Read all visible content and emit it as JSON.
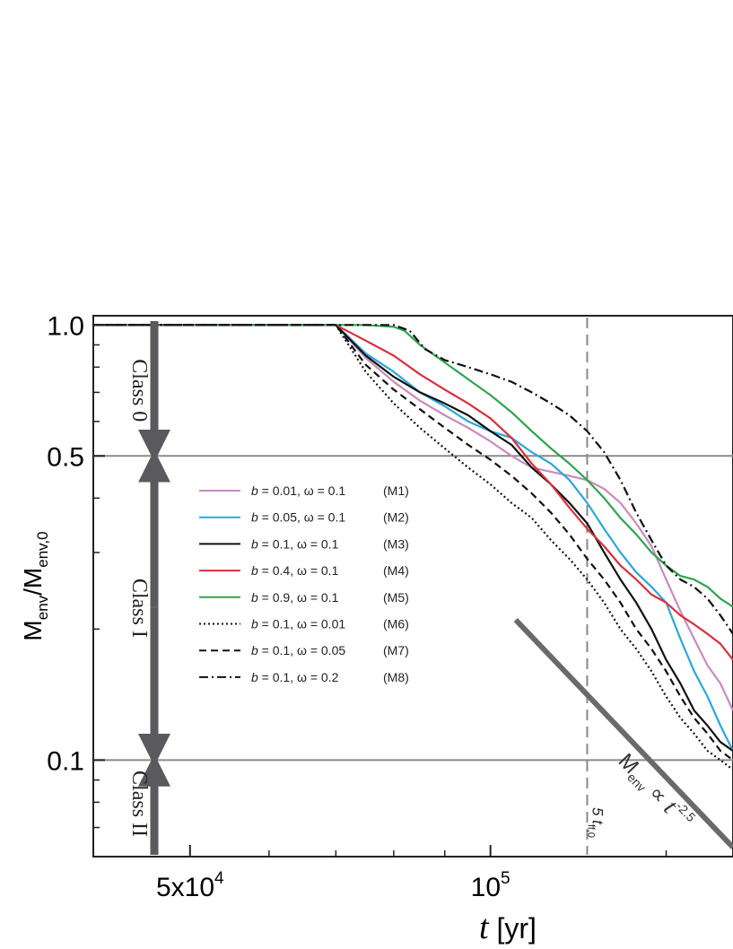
{
  "chart_data": {
    "type": "line",
    "x_scale": "log",
    "y_scale": "log",
    "xlim": [
      40000,
      175000
    ],
    "ylim": [
      0.06,
      1.05
    ],
    "x_ticks": [
      {
        "value": 50000,
        "label": "5x10",
        "exp": "4"
      },
      {
        "value": 100000,
        "label": "10",
        "exp": "5"
      }
    ],
    "y_ticks": [
      {
        "value": 1.0,
        "label": "1.0"
      },
      {
        "value": 0.5,
        "label": "0.5"
      },
      {
        "value": 0.1,
        "label": "0.1"
      }
    ],
    "xlabel": {
      "var": "t",
      "unit": " [yr]"
    },
    "ylabel": {
      "main": "M",
      "sub1": "env",
      "mid": "/M",
      "sub2": "env,0"
    },
    "hlines": [
      0.5,
      0.1
    ],
    "vline": {
      "x": 125000,
      "label": "5 t",
      "sub": "ff,0"
    },
    "classes": [
      {
        "label": "Class 0",
        "y_top": 1.0,
        "y_bottom": 0.5
      },
      {
        "label": "Class I",
        "y_top": 0.5,
        "y_bottom": 0.1
      },
      {
        "label": "Class II",
        "y_top": 0.1,
        "y_bottom": 0.063
      }
    ],
    "power_law": {
      "x": [
        106000,
        175000
      ],
      "y": [
        0.21,
        0.063
      ],
      "label": {
        "main": "M",
        "sub": "env",
        "rel": " ∝ ",
        "var": "t",
        "exp": "-2.5"
      }
    },
    "series": [
      {
        "name": "b = 0.01, ω = 0.1 (M1)",
        "b": "0.01",
        "w": "0.1",
        "tag": "(M1)",
        "color": "#c98bbf",
        "dash": "",
        "x": [
          40000,
          70000,
          75000,
          80000,
          85000,
          90000,
          95000,
          100000,
          105000,
          110000,
          115000,
          120000,
          125000,
          130000,
          135000,
          140000,
          145000,
          150000,
          155000,
          160000,
          165000,
          170000,
          175000
        ],
        "y": [
          1.0,
          1.0,
          0.84,
          0.74,
          0.67,
          0.62,
          0.58,
          0.54,
          0.5,
          0.47,
          0.46,
          0.45,
          0.44,
          0.42,
          0.39,
          0.35,
          0.31,
          0.26,
          0.22,
          0.19,
          0.165,
          0.15,
          0.13
        ]
      },
      {
        "name": "b = 0.05, ω = 0.1 (M2)",
        "b": "0.05",
        "w": "0.1",
        "tag": "(M2)",
        "color": "#2aa7dd",
        "dash": "",
        "x": [
          40000,
          70000,
          75000,
          80000,
          85000,
          90000,
          95000,
          100000,
          105000,
          110000,
          115000,
          120000,
          125000,
          130000,
          135000,
          140000,
          145000,
          150000,
          155000,
          160000,
          165000,
          170000,
          175000
        ],
        "y": [
          1.0,
          1.0,
          0.86,
          0.78,
          0.7,
          0.65,
          0.6,
          0.57,
          0.55,
          0.51,
          0.48,
          0.44,
          0.39,
          0.34,
          0.3,
          0.27,
          0.25,
          0.23,
          0.19,
          0.16,
          0.14,
          0.12,
          0.105
        ]
      },
      {
        "name": "b = 0.1, ω = 0.1 (M3)",
        "b": "0.1",
        "w": "0.1",
        "tag": "(M3)",
        "color": "#111111",
        "dash": "",
        "x": [
          40000,
          70000,
          75000,
          80000,
          85000,
          90000,
          95000,
          100000,
          105000,
          110000,
          115000,
          120000,
          125000,
          130000,
          135000,
          140000,
          145000,
          150000,
          155000,
          160000,
          165000,
          170000,
          175000
        ],
        "y": [
          1.0,
          1.0,
          0.85,
          0.76,
          0.7,
          0.66,
          0.62,
          0.57,
          0.53,
          0.47,
          0.43,
          0.39,
          0.35,
          0.3,
          0.26,
          0.23,
          0.2,
          0.17,
          0.15,
          0.13,
          0.12,
          0.11,
          0.105
        ]
      },
      {
        "name": "b = 0.4, ω = 0.1 (M4)",
        "b": "0.4",
        "w": "0.1",
        "tag": "(M4)",
        "color": "#d9303e",
        "dash": "",
        "x": [
          40000,
          70000,
          75000,
          80000,
          85000,
          90000,
          95000,
          100000,
          105000,
          110000,
          115000,
          120000,
          125000,
          130000,
          135000,
          140000,
          145000,
          150000,
          155000,
          160000,
          165000,
          170000,
          175000
        ],
        "y": [
          1.0,
          1.0,
          0.92,
          0.85,
          0.77,
          0.71,
          0.66,
          0.61,
          0.55,
          0.48,
          0.43,
          0.38,
          0.34,
          0.31,
          0.28,
          0.26,
          0.24,
          0.23,
          0.215,
          0.205,
          0.195,
          0.185,
          0.17
        ]
      },
      {
        "name": "b = 0.9, ω = 0.1 (M5)",
        "b": "0.9",
        "w": "0.1",
        "tag": "(M5)",
        "color": "#2fa44f",
        "dash": "",
        "x": [
          40000,
          70000,
          75000,
          80000,
          82000,
          85000,
          90000,
          95000,
          100000,
          105000,
          110000,
          115000,
          120000,
          125000,
          130000,
          135000,
          140000,
          145000,
          150000,
          155000,
          160000,
          165000,
          170000,
          175000
        ],
        "y": [
          1.0,
          1.0,
          1.0,
          0.99,
          0.97,
          0.9,
          0.82,
          0.75,
          0.69,
          0.63,
          0.57,
          0.52,
          0.48,
          0.44,
          0.4,
          0.36,
          0.33,
          0.3,
          0.28,
          0.265,
          0.26,
          0.25,
          0.235,
          0.225
        ]
      },
      {
        "name": "b = 0.1, ω = 0.01 (M6)",
        "b": "0.1",
        "w": "0.01",
        "tag": "(M6)",
        "color": "#111111",
        "dash": "2,3",
        "x": [
          40000,
          70000,
          75000,
          80000,
          85000,
          90000,
          95000,
          100000,
          105000,
          110000,
          115000,
          120000,
          125000,
          130000,
          135000,
          140000,
          145000,
          150000,
          155000,
          160000,
          165000,
          170000,
          175000
        ],
        "y": [
          1.0,
          1.0,
          0.78,
          0.66,
          0.58,
          0.52,
          0.47,
          0.43,
          0.39,
          0.36,
          0.32,
          0.29,
          0.26,
          0.23,
          0.2,
          0.18,
          0.16,
          0.14,
          0.125,
          0.115,
          0.105,
          0.1,
          0.095
        ]
      },
      {
        "name": "b = 0.1, ω = 0.05 (M7)",
        "b": "0.1",
        "w": "0.05",
        "tag": "(M7)",
        "color": "#111111",
        "dash": "8,5",
        "x": [
          40000,
          70000,
          75000,
          80000,
          85000,
          90000,
          95000,
          100000,
          105000,
          110000,
          115000,
          120000,
          125000,
          130000,
          135000,
          140000,
          145000,
          150000,
          155000,
          160000,
          165000,
          170000,
          175000
        ],
        "y": [
          1.0,
          1.0,
          0.81,
          0.71,
          0.64,
          0.58,
          0.53,
          0.49,
          0.45,
          0.41,
          0.37,
          0.33,
          0.29,
          0.26,
          0.23,
          0.2,
          0.18,
          0.16,
          0.14,
          0.125,
          0.115,
          0.105,
          0.1
        ]
      },
      {
        "name": "b = 0.1, ω = 0.2 (M8)",
        "b": "0.1",
        "w": "0.2",
        "tag": "(M8)",
        "color": "#111111",
        "dash": "10,4,2,4",
        "x": [
          40000,
          70000,
          80000,
          83000,
          86000,
          90000,
          95000,
          100000,
          105000,
          110000,
          115000,
          120000,
          125000,
          130000,
          135000,
          140000,
          145000,
          150000,
          155000,
          160000,
          165000,
          170000,
          175000
        ],
        "y": [
          1.0,
          1.0,
          1.0,
          0.97,
          0.88,
          0.83,
          0.8,
          0.77,
          0.74,
          0.7,
          0.66,
          0.62,
          0.57,
          0.51,
          0.44,
          0.37,
          0.32,
          0.28,
          0.26,
          0.25,
          0.235,
          0.215,
          0.195
        ]
      }
    ]
  }
}
